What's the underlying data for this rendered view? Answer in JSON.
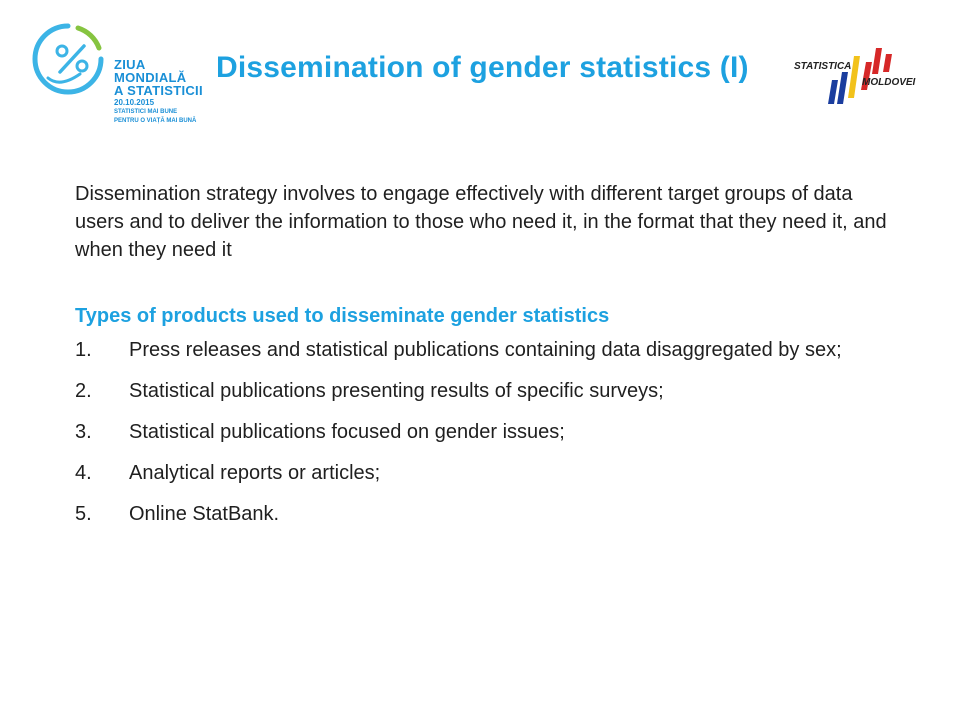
{
  "header": {
    "title": "Dissemination of gender statistics (I)",
    "left_logo": {
      "icon": "percent-circle-logo",
      "name_lines": [
        "ZIUA",
        "MONDIALĂ",
        "A STATISTICII"
      ],
      "date": "20.10.2015",
      "slogan_lines": [
        "STATISTICI MAI BUNE",
        "PENTRU O VIAȚĂ MAI BUNĂ"
      ]
    },
    "right_logo": {
      "word1": "STATISTICA",
      "word2": "MOLDOVEI",
      "colors": [
        "#1a3d9e",
        "#f2c21b",
        "#d62828"
      ]
    }
  },
  "body": {
    "intro": "Dissemination strategy involves to engage effectively with different target groups of data users and to deliver the information to those who need it, in the format that they need it, and when they need it",
    "subheading": "Types of products used to disseminate gender statistics",
    "items": [
      {
        "num": "1.",
        "text": "Press releases and statistical publications containing data disaggregated by sex;"
      },
      {
        "num": "2.",
        "text": "Statistical publications presenting results of specific surveys;"
      },
      {
        "num": "3.",
        "text": "Statistical publications focused on gender issues;"
      },
      {
        "num": "4.",
        "text": "Analytical reports or articles;"
      },
      {
        "num": "5.",
        "text": "Online StatBank."
      }
    ]
  },
  "colors": {
    "accent": "#1da1e0",
    "text": "#1f1f1f"
  }
}
